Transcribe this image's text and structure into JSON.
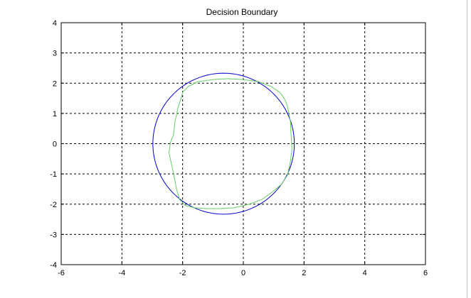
{
  "chart_data": {
    "type": "line",
    "title": "Decision Boundary",
    "xlabel": "",
    "ylabel": "",
    "xlim": [
      -6,
      6
    ],
    "ylim": [
      -4,
      4
    ],
    "xticks": [
      -6,
      -4,
      -2,
      0,
      2,
      4,
      6
    ],
    "yticks": [
      -4,
      -3,
      -2,
      -1,
      0,
      1,
      2,
      3,
      4
    ],
    "grid": true,
    "series": [
      {
        "kind": "circle",
        "color": "#0000cc",
        "center": [
          -0.65,
          0.0
        ],
        "radius": 2.33
      },
      {
        "kind": "polyline",
        "color": "#66cc66",
        "x": [
          1.55,
          1.5,
          1.45,
          1.35,
          1.2,
          0.9,
          0.5,
          0.0,
          -0.5,
          -1.0,
          -1.5,
          -1.8,
          -2.0,
          -2.05,
          -2.15,
          -2.2,
          -2.25,
          -2.3,
          -2.4,
          -2.45,
          -2.35,
          -2.28,
          -2.2,
          -2.1,
          -1.9,
          -1.6,
          -1.2,
          -0.8,
          -0.3,
          0.2,
          0.6,
          0.95,
          1.25,
          1.45,
          1.55,
          1.6,
          1.55
        ],
        "y": [
          0.75,
          1.0,
          1.25,
          1.5,
          1.7,
          1.9,
          2.05,
          2.12,
          2.15,
          2.12,
          2.05,
          1.9,
          1.7,
          1.5,
          1.2,
          0.95,
          0.75,
          0.3,
          0.05,
          -0.3,
          -0.75,
          -1.1,
          -1.5,
          -1.85,
          -2.05,
          -2.12,
          -2.15,
          -2.15,
          -2.12,
          -2.0,
          -1.85,
          -1.6,
          -1.35,
          -1.05,
          -0.6,
          -0.2,
          0.75
        ]
      }
    ]
  }
}
